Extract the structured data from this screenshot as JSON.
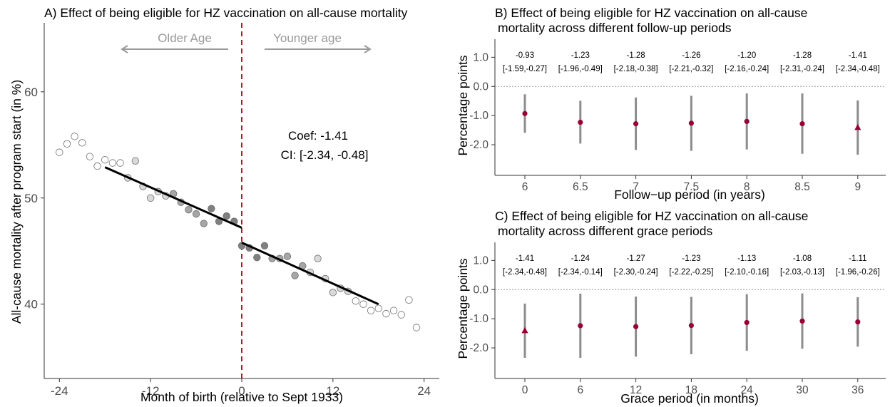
{
  "chart_data": [
    {
      "id": "A",
      "type": "scatter",
      "title": "A) Effect of being eligible for HZ vaccination on all-cause mortality",
      "xlabel": "Month of birth (relative to Sept 1933)",
      "ylabel": "All-cause mortality after program start (in %)",
      "xlim": [
        -26,
        26
      ],
      "ylim": [
        33,
        66.5
      ],
      "x_ticks": [
        -24,
        -12,
        0,
        12,
        24
      ],
      "y_ticks": [
        40,
        50,
        60
      ],
      "cutoff": 0,
      "annotations": {
        "left_arrow_label": "Older Age",
        "right_arrow_label": "Younger age",
        "coef_text": "Coef: -1.41",
        "ci_text": "CI: [-2.34, -0.48]"
      },
      "points": [
        {
          "x": -24,
          "y": 54.3,
          "shade": "open"
        },
        {
          "x": -23,
          "y": 55.1,
          "shade": "open"
        },
        {
          "x": -22,
          "y": 55.8,
          "shade": "open"
        },
        {
          "x": -21,
          "y": 55.2,
          "shade": "open"
        },
        {
          "x": -20,
          "y": 53.9,
          "shade": "open"
        },
        {
          "x": -19,
          "y": 53.0,
          "shade": "open"
        },
        {
          "x": -18,
          "y": 53.6,
          "shade": "open"
        },
        {
          "x": -17,
          "y": 53.3,
          "shade": "open"
        },
        {
          "x": -16,
          "y": 53.3,
          "shade": "open"
        },
        {
          "x": -15,
          "y": 51.9,
          "shade": "light"
        },
        {
          "x": -14,
          "y": 53.5,
          "shade": "light"
        },
        {
          "x": -13,
          "y": 51.1,
          "shade": "light"
        },
        {
          "x": -12,
          "y": 50.0,
          "shade": "light"
        },
        {
          "x": -11,
          "y": 50.6,
          "shade": "light"
        },
        {
          "x": -10,
          "y": 50.2,
          "shade": "light"
        },
        {
          "x": -9,
          "y": 50.4,
          "shade": "mid"
        },
        {
          "x": -8,
          "y": 49.6,
          "shade": "mid"
        },
        {
          "x": -7,
          "y": 48.9,
          "shade": "mid"
        },
        {
          "x": -6,
          "y": 48.5,
          "shade": "mid"
        },
        {
          "x": -5,
          "y": 47.6,
          "shade": "mid"
        },
        {
          "x": -4,
          "y": 49.0,
          "shade": "dark"
        },
        {
          "x": -3,
          "y": 47.8,
          "shade": "dark"
        },
        {
          "x": -2,
          "y": 48.3,
          "shade": "dark"
        },
        {
          "x": -1,
          "y": 47.8,
          "shade": "dark"
        },
        {
          "x": 0,
          "y": 45.5,
          "shade": "dark"
        },
        {
          "x": 1,
          "y": 45.3,
          "shade": "dark"
        },
        {
          "x": 2,
          "y": 44.4,
          "shade": "dark"
        },
        {
          "x": 3,
          "y": 45.5,
          "shade": "dark"
        },
        {
          "x": 4,
          "y": 44.3,
          "shade": "mid"
        },
        {
          "x": 5,
          "y": 44.3,
          "shade": "mid"
        },
        {
          "x": 6,
          "y": 44.5,
          "shade": "mid"
        },
        {
          "x": 7,
          "y": 42.7,
          "shade": "mid"
        },
        {
          "x": 8,
          "y": 43.6,
          "shade": "mid"
        },
        {
          "x": 9,
          "y": 43.0,
          "shade": "light"
        },
        {
          "x": 10,
          "y": 44.3,
          "shade": "light"
        },
        {
          "x": 11,
          "y": 42.4,
          "shade": "light"
        },
        {
          "x": 12,
          "y": 41.1,
          "shade": "light"
        },
        {
          "x": 13,
          "y": 41.5,
          "shade": "light"
        },
        {
          "x": 14,
          "y": 41.2,
          "shade": "light"
        },
        {
          "x": 15,
          "y": 40.3,
          "shade": "open"
        },
        {
          "x": 16,
          "y": 40.0,
          "shade": "open"
        },
        {
          "x": 17,
          "y": 39.4,
          "shade": "open"
        },
        {
          "x": 18,
          "y": 39.6,
          "shade": "open"
        },
        {
          "x": 19,
          "y": 39.1,
          "shade": "open"
        },
        {
          "x": 20,
          "y": 39.4,
          "shade": "open"
        },
        {
          "x": 21,
          "y": 39.0,
          "shade": "open"
        },
        {
          "x": 22,
          "y": 40.4,
          "shade": "open"
        },
        {
          "x": 23,
          "y": 37.8,
          "shade": "open"
        }
      ],
      "fit_lines": [
        {
          "x": [
            -18,
            0
          ],
          "y": [
            52.9,
            47.2
          ]
        },
        {
          "x": [
            0,
            18
          ],
          "y": [
            45.8,
            40.0
          ]
        }
      ],
      "colors": {
        "cutoff": "#b2182b",
        "arrows": "#9a9a9a",
        "fit": "#000000"
      }
    },
    {
      "id": "B",
      "type": "scatter",
      "title_lines": [
        "B) Effect of being eligible for HZ vaccination on all-cause",
        "mortality across different follow-up periods"
      ],
      "xlabel": "Follow−up period (in years)",
      "ylabel": "Percentage points",
      "ylim": [
        -3.05,
        1.62
      ],
      "y_ticks": [
        1.0,
        0.0,
        -1.0,
        -2.0
      ],
      "y_tick_labels": [
        "1.0",
        "0.0",
        "-1.0",
        "-2.0"
      ],
      "categories": [
        "6",
        "6.5",
        "7",
        "7.5",
        "8",
        "8.5",
        "9"
      ],
      "estimates": [
        -0.93,
        -1.23,
        -1.28,
        -1.26,
        -1.2,
        -1.28,
        -1.41
      ],
      "ci_low": [
        -1.59,
        -1.96,
        -2.18,
        -2.21,
        -2.16,
        -2.31,
        -2.34
      ],
      "ci_high": [
        -0.27,
        -0.49,
        -0.38,
        -0.32,
        -0.24,
        -0.24,
        -0.48
      ],
      "estimate_labels": [
        "-0.93",
        "-1.23",
        "-1.28",
        "-1.26",
        "-1.20",
        "-1.28",
        "-1.41"
      ],
      "ci_labels": [
        "[-1.59,-0.27]",
        "[-1.96,-0.49]",
        "[-2.18,-0.38]",
        "[-2.21,-0.32]",
        "[-2.16,-0.24]",
        "[-2.31,-0.24]",
        "[-2.34,-0.48]"
      ],
      "markers": [
        "circle",
        "circle",
        "circle",
        "circle",
        "circle",
        "circle",
        "triangle"
      ],
      "colors": {
        "point": "#990033",
        "interval": "#8c8c8c"
      }
    },
    {
      "id": "C",
      "type": "scatter",
      "title_lines": [
        "C) Effect of being eligible for HZ vaccination on all-cause",
        "mortality across different grace periods"
      ],
      "xlabel": "Grace period (in months)",
      "ylabel": "Percentage points",
      "ylim": [
        -3.05,
        1.62
      ],
      "y_ticks": [
        1.0,
        0.0,
        -1.0,
        -2.0
      ],
      "y_tick_labels": [
        "1.0",
        "0.0",
        "-1.0",
        "-2.0"
      ],
      "categories": [
        "0",
        "6",
        "12",
        "18",
        "24",
        "30",
        "36"
      ],
      "estimates": [
        -1.41,
        -1.24,
        -1.27,
        -1.23,
        -1.13,
        -1.08,
        -1.11
      ],
      "ci_low": [
        -2.34,
        -2.34,
        -2.3,
        -2.22,
        -2.1,
        -2.03,
        -1.96
      ],
      "ci_high": [
        -0.48,
        -0.14,
        -0.24,
        -0.25,
        -0.16,
        -0.13,
        -0.26
      ],
      "estimate_labels": [
        "-1.41",
        "-1.24",
        "-1.27",
        "-1.23",
        "-1.13",
        "-1.08",
        "-1.11"
      ],
      "ci_labels": [
        "[-2.34,-0.48]",
        "[-2.34,-0.14]",
        "[-2.30,-0.24]",
        "[-2.22,-0.25]",
        "[-2.10,-0.16]",
        "[-2.03,-0.13]",
        "[-1.96,-0.26]"
      ],
      "markers": [
        "triangle",
        "circle",
        "circle",
        "circle",
        "circle",
        "circle",
        "circle"
      ],
      "colors": {
        "point": "#990033",
        "interval": "#8c8c8c"
      }
    }
  ]
}
